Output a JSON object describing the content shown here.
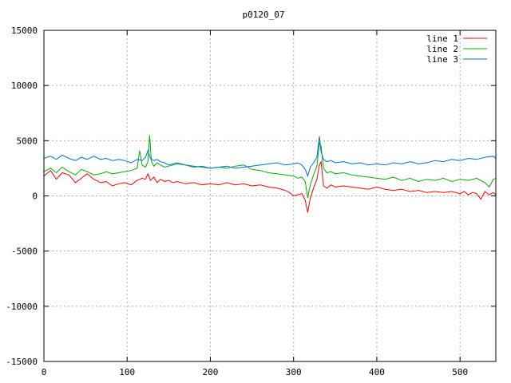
{
  "chart_data": {
    "type": "line",
    "title": "p0120_07",
    "xlabel": "",
    "ylabel": "",
    "xlim": [
      0,
      543
    ],
    "ylim": [
      -15000,
      15000
    ],
    "x_ticks": [
      0,
      100,
      200,
      300,
      400,
      500
    ],
    "y_ticks": [
      -15000,
      -10000,
      -5000,
      0,
      5000,
      10000,
      15000
    ],
    "grid": true,
    "legend_position": "top-right",
    "series": [
      {
        "name": "line 1",
        "color": "#ff0000",
        "x": [
          0,
          8,
          15,
          22,
          30,
          38,
          45,
          52,
          60,
          68,
          75,
          82,
          90,
          97,
          105,
          112,
          118,
          122,
          125,
          128,
          132,
          136,
          140,
          145,
          150,
          155,
          160,
          170,
          180,
          190,
          200,
          210,
          220,
          230,
          240,
          250,
          260,
          270,
          280,
          290,
          295,
          300,
          305,
          310,
          314,
          317,
          320,
          324,
          328,
          331,
          333,
          336,
          340,
          345,
          350,
          360,
          370,
          380,
          390,
          400,
          410,
          420,
          430,
          440,
          450,
          460,
          470,
          480,
          490,
          500,
          505,
          510,
          515,
          520,
          525,
          530,
          535,
          540,
          543
        ],
        "y": [
          1800,
          2300,
          1500,
          2100,
          1900,
          1200,
          1600,
          2000,
          1500,
          1200,
          1300,
          900,
          1100,
          1200,
          1000,
          1400,
          1600,
          1500,
          2000,
          1400,
          1700,
          1200,
          1500,
          1300,
          1400,
          1200,
          1300,
          1100,
          1200,
          1000,
          1100,
          1000,
          1200,
          1000,
          1100,
          900,
          1000,
          800,
          700,
          500,
          300,
          0,
          100,
          200,
          -400,
          -1500,
          -200,
          700,
          1500,
          2800,
          3100,
          900,
          700,
          1000,
          800,
          900,
          800,
          700,
          600,
          800,
          600,
          500,
          600,
          400,
          500,
          300,
          400,
          300,
          400,
          200,
          400,
          100,
          300,
          200,
          -300,
          400,
          100,
          300,
          100
        ]
      },
      {
        "name": "line 2",
        "color": "#00b000",
        "x": [
          0,
          8,
          15,
          22,
          30,
          38,
          45,
          52,
          60,
          68,
          75,
          82,
          90,
          97,
          105,
          112,
          115,
          118,
          122,
          125,
          127,
          129,
          132,
          136,
          140,
          145,
          150,
          160,
          170,
          180,
          190,
          200,
          210,
          220,
          230,
          240,
          250,
          260,
          270,
          280,
          290,
          300,
          305,
          310,
          314,
          317,
          320,
          324,
          328,
          331,
          333,
          336,
          340,
          345,
          350,
          360,
          370,
          380,
          390,
          400,
          410,
          420,
          430,
          440,
          450,
          460,
          470,
          480,
          490,
          500,
          510,
          520,
          530,
          535,
          540,
          543
        ],
        "y": [
          2200,
          2500,
          2100,
          2600,
          2200,
          1900,
          2400,
          2200,
          1900,
          2000,
          2200,
          2000,
          2100,
          2200,
          2300,
          2500,
          4100,
          2800,
          2600,
          3100,
          5500,
          3200,
          2700,
          3000,
          2800,
          2600,
          2700,
          2900,
          2800,
          2700,
          2600,
          2500,
          2600,
          2500,
          2700,
          2800,
          2400,
          2300,
          2100,
          2000,
          1900,
          1800,
          1600,
          1700,
          1300,
          -200,
          1000,
          1900,
          2700,
          4800,
          4500,
          2500,
          2100,
          2200,
          2000,
          2100,
          1900,
          1800,
          1700,
          1600,
          1500,
          1700,
          1400,
          1600,
          1300,
          1500,
          1400,
          1600,
          1300,
          1500,
          1400,
          1600,
          1200,
          800,
          1500,
          1600
        ]
      },
      {
        "name": "line 3",
        "color": "#0070d0",
        "x": [
          0,
          8,
          15,
          22,
          30,
          38,
          45,
          52,
          60,
          68,
          75,
          82,
          90,
          97,
          105,
          112,
          118,
          122,
          125,
          128,
          132,
          136,
          140,
          145,
          150,
          160,
          170,
          180,
          190,
          200,
          210,
          220,
          230,
          240,
          250,
          260,
          270,
          280,
          290,
          300,
          305,
          310,
          314,
          317,
          320,
          324,
          328,
          331,
          333,
          336,
          340,
          345,
          350,
          360,
          370,
          380,
          390,
          400,
          410,
          420,
          430,
          440,
          450,
          460,
          470,
          480,
          490,
          500,
          510,
          520,
          530,
          540,
          543
        ],
        "y": [
          3400,
          3600,
          3300,
          3700,
          3400,
          3200,
          3500,
          3300,
          3600,
          3300,
          3400,
          3200,
          3300,
          3200,
          3000,
          3300,
          3200,
          3500,
          4100,
          3400,
          3200,
          3300,
          3100,
          3000,
          2800,
          3000,
          2800,
          2600,
          2700,
          2500,
          2600,
          2700,
          2500,
          2600,
          2700,
          2800,
          2900,
          3000,
          2800,
          2900,
          3000,
          2800,
          2400,
          1800,
          2600,
          3000,
          3500,
          5400,
          4000,
          3300,
          3100,
          3200,
          3000,
          3100,
          2900,
          3000,
          2800,
          2900,
          2800,
          3000,
          2900,
          3100,
          2900,
          3000,
          3200,
          3100,
          3300,
          3200,
          3400,
          3300,
          3500,
          3600,
          3400
        ]
      }
    ]
  }
}
